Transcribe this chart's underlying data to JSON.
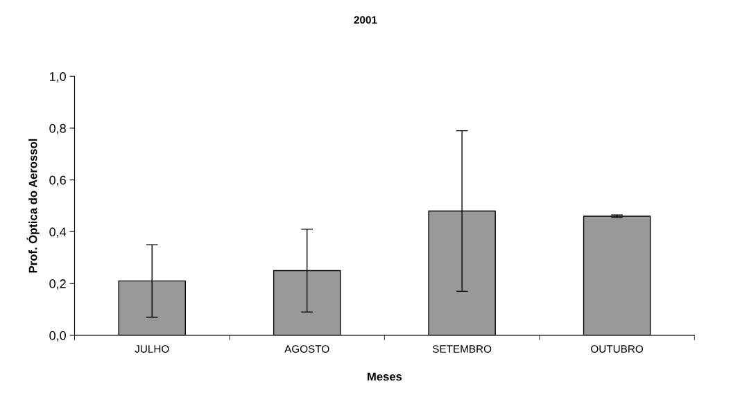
{
  "chart_data": {
    "type": "bar",
    "title": "2001",
    "xlabel": "Meses",
    "ylabel": "Prof. Óptica do Aerossol",
    "categories": [
      "JULHO",
      "AGOSTO",
      "SETEMBRO",
      "OUTUBRO"
    ],
    "values": [
      0.21,
      0.25,
      0.48,
      0.46
    ],
    "errors": [
      0.14,
      0.16,
      0.31,
      0.005
    ],
    "color": "#999999",
    "ylim": [
      0,
      1
    ],
    "yticks": [
      {
        "value": 0,
        "label": "0,0"
      },
      {
        "value": 0.2,
        "label": "0,2"
      },
      {
        "value": 0.4,
        "label": "0,4"
      },
      {
        "value": 0.6,
        "label": "0,6"
      },
      {
        "value": 0.8,
        "label": "0,8"
      },
      {
        "value": 1,
        "label": "1,0"
      }
    ],
    "grid": false,
    "legend": false
  }
}
